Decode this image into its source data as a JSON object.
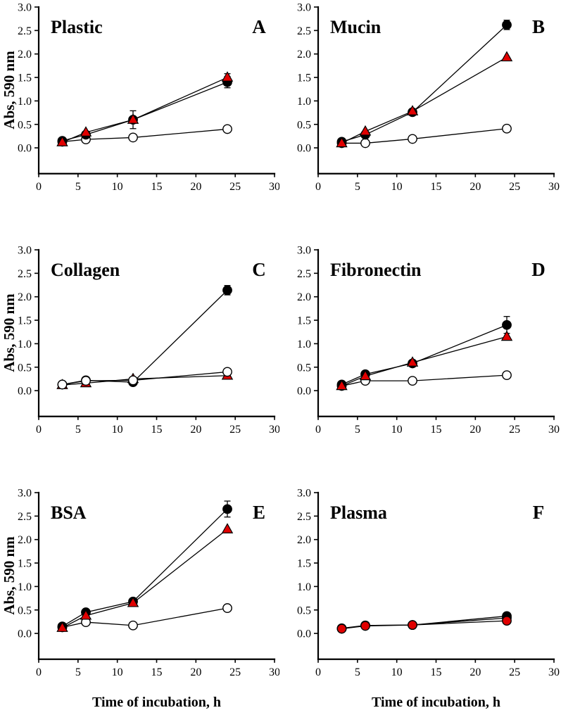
{
  "figure": {
    "ylabel": "Abs, 590 nm",
    "xlabel": "Time of incubation, h",
    "background_color": "#ffffff",
    "axis_color": "#000000",
    "series_legend": [
      {
        "id": "open",
        "name": "open-circle-series",
        "marker": "circle",
        "fill": "#ffffff",
        "stroke": "#000000"
      },
      {
        "id": "black",
        "name": "filled-circle-series",
        "marker": "circle",
        "fill": "#000000",
        "stroke": "#000000"
      },
      {
        "id": "red",
        "name": "red-triangle-series",
        "marker": "triangle",
        "fill": "#e00000",
        "stroke": "#000000"
      }
    ]
  },
  "chart_data": [
    {
      "type": "line",
      "panel_letter": "A",
      "title": "Plastic",
      "show_ylabel": true,
      "show_xlabel": false,
      "x": [
        3,
        6,
        12,
        24
      ],
      "xlim": [
        0,
        30
      ],
      "ylim": [
        -0.55,
        3.0
      ],
      "xticks": [
        0,
        5,
        10,
        15,
        20,
        25,
        30
      ],
      "yticks": [
        "0.0",
        "0.5",
        "1.0",
        "1.5",
        "2.0",
        "2.5",
        "3.0"
      ],
      "draw_order": [
        "open",
        "black",
        "red"
      ],
      "series": [
        {
          "id": "black",
          "marker": "circle",
          "fill": "#000000",
          "stroke": "#000000",
          "values": [
            0.15,
            0.28,
            0.6,
            1.4
          ],
          "errors": [
            0,
            0,
            0.19,
            0.12
          ]
        },
        {
          "id": "red",
          "marker": "triangle",
          "fill": "#e00000",
          "stroke": "#000000",
          "values": [
            0.12,
            0.33,
            0.6,
            1.5
          ],
          "errors": [
            0,
            0,
            0,
            0.08
          ]
        },
        {
          "id": "open",
          "marker": "circle",
          "fill": "#ffffff",
          "stroke": "#000000",
          "values": [
            0.13,
            0.18,
            0.22,
            0.4
          ],
          "errors": [
            0,
            0,
            0,
            0
          ]
        }
      ]
    },
    {
      "type": "line",
      "panel_letter": "B",
      "title": "Mucin",
      "show_ylabel": false,
      "show_xlabel": false,
      "x": [
        3,
        6,
        12,
        24
      ],
      "xlim": [
        0,
        30
      ],
      "ylim": [
        -0.55,
        3.0
      ],
      "xticks": [
        0,
        5,
        10,
        15,
        20,
        25,
        30
      ],
      "yticks": [
        "0.0",
        "0.5",
        "1.0",
        "1.5",
        "2.0",
        "2.5",
        "3.0"
      ],
      "draw_order": [
        "open",
        "black",
        "red"
      ],
      "series": [
        {
          "id": "black",
          "marker": "circle",
          "fill": "#000000",
          "stroke": "#000000",
          "values": [
            0.13,
            0.28,
            0.76,
            2.62
          ],
          "errors": [
            0,
            0,
            0,
            0.1
          ]
        },
        {
          "id": "red",
          "marker": "triangle",
          "fill": "#e00000",
          "stroke": "#000000",
          "values": [
            0.1,
            0.35,
            0.78,
            1.93
          ],
          "errors": [
            0,
            0,
            0,
            0
          ]
        },
        {
          "id": "open",
          "marker": "circle",
          "fill": "#ffffff",
          "stroke": "#000000",
          "values": [
            0.1,
            0.1,
            0.19,
            0.41
          ],
          "errors": [
            0,
            0,
            0,
            0
          ]
        }
      ]
    },
    {
      "type": "line",
      "panel_letter": "C",
      "title": "Collagen",
      "show_ylabel": true,
      "show_xlabel": false,
      "x": [
        3,
        6,
        12,
        24
      ],
      "xlim": [
        0,
        30
      ],
      "ylim": [
        -0.55,
        3.0
      ],
      "xticks": [
        0,
        5,
        10,
        15,
        20,
        25,
        30
      ],
      "yticks": [
        "0.0",
        "0.5",
        "1.0",
        "1.5",
        "2.0",
        "2.5",
        "3.0"
      ],
      "draw_order": [
        "black",
        "red",
        "open"
      ],
      "series": [
        {
          "id": "black",
          "marker": "circle",
          "fill": "#000000",
          "stroke": "#000000",
          "values": [
            0.13,
            0.22,
            0.18,
            2.14
          ],
          "errors": [
            0,
            0,
            0,
            0.1
          ]
        },
        {
          "id": "red",
          "marker": "triangle",
          "fill": "#e00000",
          "stroke": "#000000",
          "values": [
            0.12,
            0.16,
            0.25,
            0.32
          ],
          "errors": [
            0,
            0,
            0,
            0
          ]
        },
        {
          "id": "open",
          "marker": "circle",
          "fill": "#ffffff",
          "stroke": "#000000",
          "values": [
            0.13,
            0.21,
            0.22,
            0.4
          ],
          "errors": [
            0,
            0,
            0,
            0
          ]
        }
      ]
    },
    {
      "type": "line",
      "panel_letter": "D",
      "title": "Fibronectin",
      "show_ylabel": false,
      "show_xlabel": false,
      "x": [
        3,
        6,
        12,
        24
      ],
      "xlim": [
        0,
        30
      ],
      "ylim": [
        -0.55,
        3.0
      ],
      "xticks": [
        0,
        5,
        10,
        15,
        20,
        25,
        30
      ],
      "yticks": [
        "0.0",
        "0.5",
        "1.0",
        "1.5",
        "2.0",
        "2.5",
        "3.0"
      ],
      "draw_order": [
        "open",
        "black",
        "red"
      ],
      "series": [
        {
          "id": "black",
          "marker": "circle",
          "fill": "#000000",
          "stroke": "#000000",
          "values": [
            0.13,
            0.35,
            0.58,
            1.4
          ],
          "errors": [
            0,
            0,
            0,
            0.18
          ]
        },
        {
          "id": "red",
          "marker": "triangle",
          "fill": "#e00000",
          "stroke": "#000000",
          "values": [
            0.1,
            0.31,
            0.6,
            1.15
          ],
          "errors": [
            0,
            0,
            0,
            0
          ]
        },
        {
          "id": "open",
          "marker": "circle",
          "fill": "#ffffff",
          "stroke": "#000000",
          "values": [
            0.1,
            0.21,
            0.21,
            0.33
          ],
          "errors": [
            0,
            0,
            0,
            0
          ]
        }
      ]
    },
    {
      "type": "line",
      "panel_letter": "E",
      "title": "BSA",
      "show_ylabel": true,
      "show_xlabel": true,
      "x": [
        3,
        6,
        12,
        24
      ],
      "xlim": [
        0,
        30
      ],
      "ylim": [
        -0.55,
        3.0
      ],
      "xticks": [
        0,
        5,
        10,
        15,
        20,
        25,
        30
      ],
      "yticks": [
        "0.0",
        "0.5",
        "1.0",
        "1.5",
        "2.0",
        "2.5",
        "3.0"
      ],
      "draw_order": [
        "open",
        "black",
        "red"
      ],
      "series": [
        {
          "id": "black",
          "marker": "circle",
          "fill": "#000000",
          "stroke": "#000000",
          "values": [
            0.15,
            0.45,
            0.68,
            2.65
          ],
          "errors": [
            0,
            0,
            0,
            0.17
          ]
        },
        {
          "id": "red",
          "marker": "triangle",
          "fill": "#e00000",
          "stroke": "#000000",
          "values": [
            0.12,
            0.38,
            0.65,
            2.22
          ],
          "errors": [
            0,
            0,
            0,
            0
          ]
        },
        {
          "id": "open",
          "marker": "circle",
          "fill": "#ffffff",
          "stroke": "#000000",
          "values": [
            0.13,
            0.24,
            0.17,
            0.54
          ],
          "errors": [
            0,
            0,
            0,
            0
          ]
        }
      ]
    },
    {
      "type": "line",
      "panel_letter": "F",
      "title": "Plasma",
      "show_ylabel": false,
      "show_xlabel": true,
      "x": [
        3,
        6,
        12,
        24
      ],
      "xlim": [
        0,
        30
      ],
      "ylim": [
        -0.55,
        3.0
      ],
      "xticks": [
        0,
        5,
        10,
        15,
        20,
        25,
        30
      ],
      "yticks": [
        "0.0",
        "0.5",
        "1.0",
        "1.5",
        "2.0",
        "2.5",
        "3.0"
      ],
      "draw_order": [
        "open",
        "black",
        "red"
      ],
      "series": [
        {
          "id": "black",
          "marker": "circle",
          "fill": "#000000",
          "stroke": "#000000",
          "values": [
            0.1,
            0.17,
            0.18,
            0.37
          ],
          "errors": [
            0,
            0,
            0,
            0
          ]
        },
        {
          "id": "red",
          "marker": "circle",
          "fill": "#e00000",
          "stroke": "#000000",
          "values": [
            0.1,
            0.16,
            0.18,
            0.27
          ],
          "errors": [
            0,
            0,
            0,
            0
          ]
        },
        {
          "id": "open",
          "marker": "circle",
          "fill": "#ffffff",
          "stroke": "#000000",
          "values": [
            0.11,
            0.17,
            0.18,
            0.33
          ],
          "errors": [
            0,
            0,
            0,
            0
          ]
        }
      ]
    }
  ]
}
